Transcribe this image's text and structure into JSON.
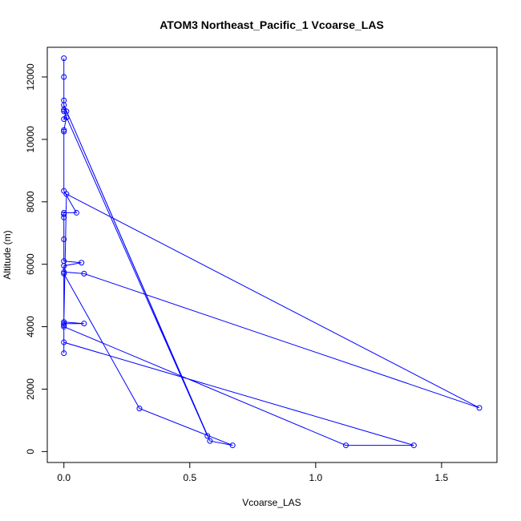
{
  "chart_data": {
    "type": "line",
    "title": "ATOM3 Northeast_Pacific_1 Vcoarse_LAS",
    "xlabel": "Vcoarse_LAS",
    "ylabel": "Altitude (m)",
    "xlim": [
      -0.066,
      1.72
    ],
    "ylim": [
      -350,
      12950
    ],
    "x_ticks": [
      0,
      0.5,
      1,
      1.5
    ],
    "x_tick_labels": [
      "0.0",
      "0.5",
      "1.0",
      "1.5"
    ],
    "y_ticks": [
      0,
      2000,
      4000,
      6000,
      8000,
      10000,
      12000
    ],
    "y_tick_labels": [
      "0",
      "2000",
      "4000",
      "6000",
      "8000",
      "10000",
      "12000"
    ],
    "grid": false,
    "legend": "none",
    "colors": {
      "series": "#0000ff",
      "frame": "#000000"
    },
    "series": [
      {
        "marker": "open-circle",
        "points": [
          [
            0.0,
            12600
          ],
          [
            0.0,
            12000
          ],
          [
            0.0,
            11250
          ],
          [
            0.0,
            10950
          ],
          [
            0.01,
            10900
          ],
          [
            0.0,
            10650
          ],
          [
            0.01,
            10700
          ],
          [
            0.0,
            10300
          ],
          [
            0.0,
            10250
          ],
          [
            0.0,
            8350
          ],
          [
            0.05,
            7650
          ],
          [
            0.0,
            7650
          ],
          [
            0.0,
            7600
          ],
          [
            0.0,
            7500
          ],
          [
            0.0,
            6800
          ],
          [
            0.0,
            6100
          ],
          [
            0.07,
            6050
          ],
          [
            0.0,
            5950
          ],
          [
            0.0,
            5750
          ],
          [
            0.08,
            5700
          ],
          [
            1.65,
            1400
          ],
          [
            0.01,
            8250
          ],
          [
            0.0,
            4150
          ],
          [
            0.08,
            4100
          ],
          [
            0.0,
            4100
          ],
          [
            0.0,
            4050
          ],
          [
            0.0,
            4000
          ],
          [
            1.12,
            200
          ],
          [
            1.39,
            200
          ],
          [
            0.0,
            3500
          ],
          [
            0.0,
            3150
          ],
          [
            0.0,
            5700
          ],
          [
            0.3,
            1380
          ],
          [
            0.67,
            200
          ],
          [
            0.58,
            340
          ],
          [
            0.0,
            11100
          ],
          [
            0.57,
            500
          ],
          [
            0.0,
            10900
          ]
        ]
      }
    ]
  }
}
